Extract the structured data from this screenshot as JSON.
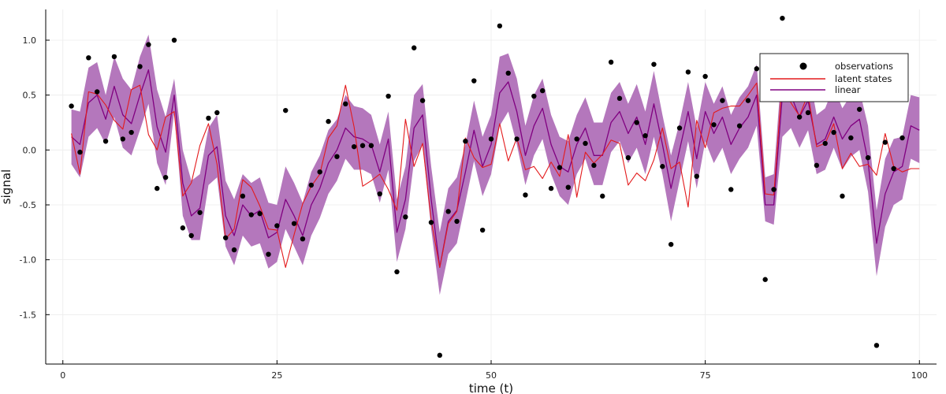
{
  "chart_data": {
    "type": "line",
    "xlabel": "time (t)",
    "ylabel": "signal",
    "xlim": [
      -2,
      102
    ],
    "ylim": [
      -1.95,
      1.28
    ],
    "xticks": [
      0,
      25,
      50,
      75,
      100
    ],
    "xtick_labels": [
      "0",
      "25",
      "50",
      "75",
      "100"
    ],
    "yticks": [
      1.0,
      0.5,
      0.0,
      -0.5,
      -1.0,
      -1.5
    ],
    "ytick_labels": [
      "1.0",
      "0.5",
      "0.0",
      "-0.5",
      "-1.0",
      "-1.5"
    ],
    "grid": true,
    "legend": {
      "placement": "top-right",
      "entries": [
        {
          "label": "observations",
          "kind": "marker",
          "color": "#000000"
        },
        {
          "label": "latent states",
          "kind": "line",
          "color": "#e31a1c"
        },
        {
          "label": "linear",
          "kind": "line",
          "color": "#800080"
        }
      ]
    },
    "colors": {
      "observations": "#000000",
      "latent": "#e31a1c",
      "linear": "#800080",
      "band": "#b070b8"
    },
    "x": [
      1,
      2,
      3,
      4,
      5,
      6,
      7,
      8,
      9,
      10,
      11,
      12,
      13,
      14,
      15,
      16,
      17,
      18,
      19,
      20,
      21,
      22,
      23,
      24,
      25,
      26,
      27,
      28,
      29,
      30,
      31,
      32,
      33,
      34,
      35,
      36,
      37,
      38,
      39,
      40,
      41,
      42,
      43,
      44,
      45,
      46,
      47,
      48,
      49,
      50,
      51,
      52,
      53,
      54,
      55,
      56,
      57,
      58,
      59,
      60,
      61,
      62,
      63,
      64,
      65,
      66,
      67,
      68,
      69,
      70,
      71,
      72,
      73,
      74,
      75,
      76,
      77,
      78,
      79,
      80,
      81,
      82,
      83,
      84,
      85,
      86,
      87,
      88,
      89,
      90,
      91,
      92,
      93,
      94,
      95,
      96,
      97,
      98,
      99,
      100
    ],
    "series": [
      {
        "name": "observations",
        "type": "scatter",
        "values": [
          0.4,
          -0.02,
          0.84,
          0.53,
          0.08,
          0.85,
          0.1,
          0.16,
          0.76,
          0.96,
          -0.35,
          -0.25,
          1.0,
          -0.71,
          -0.78,
          -0.57,
          0.29,
          0.34,
          -0.8,
          -0.91,
          -0.42,
          -0.59,
          -0.58,
          -0.95,
          -0.69,
          0.36,
          -0.67,
          -0.81,
          -0.32,
          -0.2,
          0.26,
          -0.06,
          0.42,
          0.03,
          0.04,
          0.04,
          -0.4,
          0.49,
          -1.11,
          -0.61,
          0.93,
          0.45,
          -0.66,
          -1.87,
          -0.56,
          -0.65,
          0.08,
          0.63,
          -0.73,
          0.1,
          1.13,
          0.7,
          0.1,
          -0.41,
          0.49,
          0.54,
          -0.35,
          -0.16,
          -0.34,
          0.1,
          0.06,
          -0.14,
          -0.42,
          0.8,
          0.47,
          -0.07,
          0.25,
          0.13,
          0.78,
          -0.15,
          -0.86,
          0.2,
          0.71,
          -0.24,
          0.67,
          0.23,
          0.45,
          -0.36,
          0.22,
          0.45,
          0.74,
          -1.18,
          -0.36,
          1.2,
          0.5,
          0.3,
          0.34,
          -0.14,
          0.06,
          0.16,
          -0.42,
          0.11,
          0.37,
          -0.07,
          -1.78,
          0.07,
          -0.17,
          0.11
        ]
      },
      {
        "name": "latent states",
        "type": "line",
        "values": [
          0.15,
          -0.22,
          0.53,
          0.51,
          0.41,
          0.27,
          0.19,
          0.55,
          0.59,
          0.14,
          0.0,
          0.3,
          0.35,
          -0.42,
          -0.3,
          0.04,
          0.24,
          -0.13,
          -0.81,
          -0.72,
          -0.27,
          -0.34,
          -0.51,
          -0.72,
          -0.73,
          -1.07,
          -0.77,
          -0.49,
          -0.33,
          -0.22,
          0.11,
          0.22,
          0.59,
          0.21,
          -0.33,
          -0.28,
          -0.22,
          -0.36,
          -0.55,
          0.28,
          -0.15,
          0.06,
          -0.64,
          -1.07,
          -0.67,
          -0.56,
          0.11,
          -0.07,
          -0.16,
          -0.13,
          0.24,
          -0.1,
          0.11,
          -0.18,
          -0.15,
          -0.26,
          -0.11,
          -0.24,
          0.14,
          -0.43,
          -0.02,
          -0.12,
          -0.04,
          0.09,
          0.06,
          -0.32,
          -0.21,
          -0.28,
          -0.09,
          0.2,
          -0.17,
          -0.11,
          -0.52,
          0.27,
          0.02,
          0.34,
          0.38,
          0.4,
          0.4,
          0.5,
          0.61,
          -0.4,
          -0.41,
          0.65,
          0.43,
          0.31,
          0.51,
          0.03,
          0.06,
          0.24,
          -0.17,
          -0.03,
          -0.15,
          -0.13,
          -0.23,
          0.15,
          -0.15,
          -0.2,
          -0.17,
          -0.17
        ]
      },
      {
        "name": "linear",
        "type": "line",
        "values": [
          0.12,
          0.05,
          0.43,
          0.5,
          0.28,
          0.58,
          0.32,
          0.24,
          0.5,
          0.73,
          0.21,
          -0.02,
          0.5,
          -0.3,
          -0.6,
          -0.53,
          -0.05,
          0.03,
          -0.6,
          -0.78,
          -0.5,
          -0.6,
          -0.55,
          -0.8,
          -0.75,
          -0.45,
          -0.6,
          -0.78,
          -0.5,
          -0.35,
          -0.12,
          0.0,
          0.2,
          0.12,
          0.1,
          0.05,
          -0.2,
          0.1,
          -0.75,
          -0.45,
          0.2,
          0.32,
          -0.45,
          -1.07,
          -0.65,
          -0.55,
          -0.2,
          0.18,
          -0.15,
          0.05,
          0.52,
          0.62,
          0.35,
          -0.05,
          0.22,
          0.38,
          0.05,
          -0.15,
          -0.2,
          0.05,
          0.2,
          -0.05,
          -0.05,
          0.25,
          0.35,
          0.15,
          0.3,
          0.05,
          0.42,
          0.05,
          -0.35,
          0.0,
          0.35,
          -0.08,
          0.35,
          0.15,
          0.3,
          0.05,
          0.2,
          0.3,
          0.5,
          -0.5,
          -0.5,
          0.5,
          0.5,
          0.3,
          0.45,
          0.05,
          0.1,
          0.3,
          0.1,
          0.22,
          0.28,
          -0.1,
          -0.85,
          -0.4,
          -0.2,
          -0.15,
          0.22,
          0.18
        ]
      },
      {
        "name": "linear-band-upper",
        "type": "band",
        "values": [
          0.37,
          0.35,
          0.75,
          0.8,
          0.5,
          0.85,
          0.65,
          0.55,
          0.85,
          1.05,
          0.55,
          0.3,
          0.65,
          0.0,
          -0.28,
          -0.22,
          0.2,
          0.32,
          -0.28,
          -0.45,
          -0.22,
          -0.3,
          -0.25,
          -0.48,
          -0.5,
          -0.15,
          -0.3,
          -0.48,
          -0.2,
          -0.05,
          0.18,
          0.28,
          0.5,
          0.4,
          0.38,
          0.32,
          0.05,
          0.35,
          -0.45,
          -0.15,
          0.5,
          0.6,
          -0.15,
          -0.75,
          -0.35,
          -0.25,
          0.05,
          0.45,
          0.12,
          0.32,
          0.85,
          0.88,
          0.65,
          0.22,
          0.5,
          0.65,
          0.32,
          0.12,
          0.08,
          0.32,
          0.48,
          0.25,
          0.25,
          0.52,
          0.62,
          0.42,
          0.6,
          0.35,
          0.72,
          0.32,
          -0.05,
          0.25,
          0.62,
          0.2,
          0.62,
          0.42,
          0.58,
          0.32,
          0.48,
          0.58,
          0.78,
          -0.25,
          -0.22,
          0.82,
          0.82,
          0.6,
          0.75,
          0.32,
          0.38,
          0.58,
          0.38,
          0.5,
          0.55,
          0.22,
          -0.55,
          -0.08,
          0.1,
          0.12,
          0.5,
          0.48
        ]
      },
      {
        "name": "linear-band-lower",
        "type": "band",
        "values": [
          -0.13,
          -0.25,
          0.12,
          0.2,
          0.05,
          0.3,
          0.02,
          -0.05,
          0.18,
          0.42,
          -0.12,
          -0.32,
          0.35,
          -0.6,
          -0.82,
          -0.82,
          -0.32,
          -0.25,
          -0.88,
          -1.05,
          -0.78,
          -0.88,
          -0.85,
          -1.08,
          -1.02,
          -0.72,
          -0.88,
          -1.05,
          -0.78,
          -0.62,
          -0.4,
          -0.28,
          -0.08,
          -0.18,
          -0.18,
          -0.22,
          -0.48,
          -0.18,
          -1.02,
          -0.72,
          -0.1,
          0.05,
          -0.72,
          -1.32,
          -0.95,
          -0.85,
          -0.48,
          -0.1,
          -0.42,
          -0.22,
          0.22,
          0.35,
          0.05,
          -0.32,
          -0.05,
          0.1,
          -0.22,
          -0.42,
          -0.5,
          -0.22,
          -0.08,
          -0.32,
          -0.32,
          -0.02,
          0.08,
          -0.12,
          0.02,
          -0.22,
          0.12,
          -0.22,
          -0.65,
          -0.28,
          0.08,
          -0.35,
          0.08,
          -0.12,
          0.02,
          -0.22,
          -0.08,
          0.02,
          0.22,
          -0.65,
          -0.68,
          0.12,
          0.2,
          0.02,
          0.18,
          -0.22,
          -0.18,
          0.02,
          -0.18,
          -0.06,
          0.0,
          -0.38,
          -1.15,
          -0.7,
          -0.5,
          -0.45,
          -0.08,
          -0.12
        ]
      }
    ]
  }
}
